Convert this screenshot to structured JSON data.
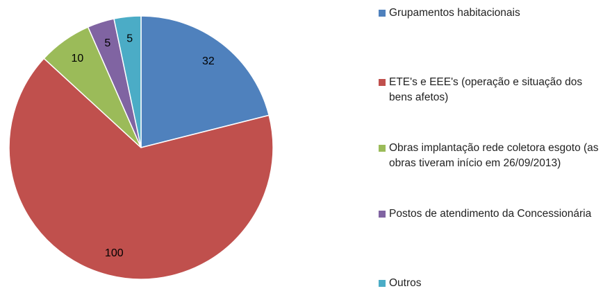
{
  "chart_data": {
    "type": "pie",
    "categories": [
      "Grupamentos habitacionais",
      "ETE's e EEE's (operação e situação dos bens afetos)",
      "Obras implantação rede coletora esgoto (as obras tiveram início em 26/09/2013)",
      "Postos de atendimento da Concessionária",
      "Outros"
    ],
    "values": [
      32,
      100,
      10,
      5,
      5
    ],
    "colors": [
      "#4f81bd",
      "#c0504d",
      "#9bbb59",
      "#8064a2",
      "#4bacc6"
    ],
    "legend": "right"
  }
}
